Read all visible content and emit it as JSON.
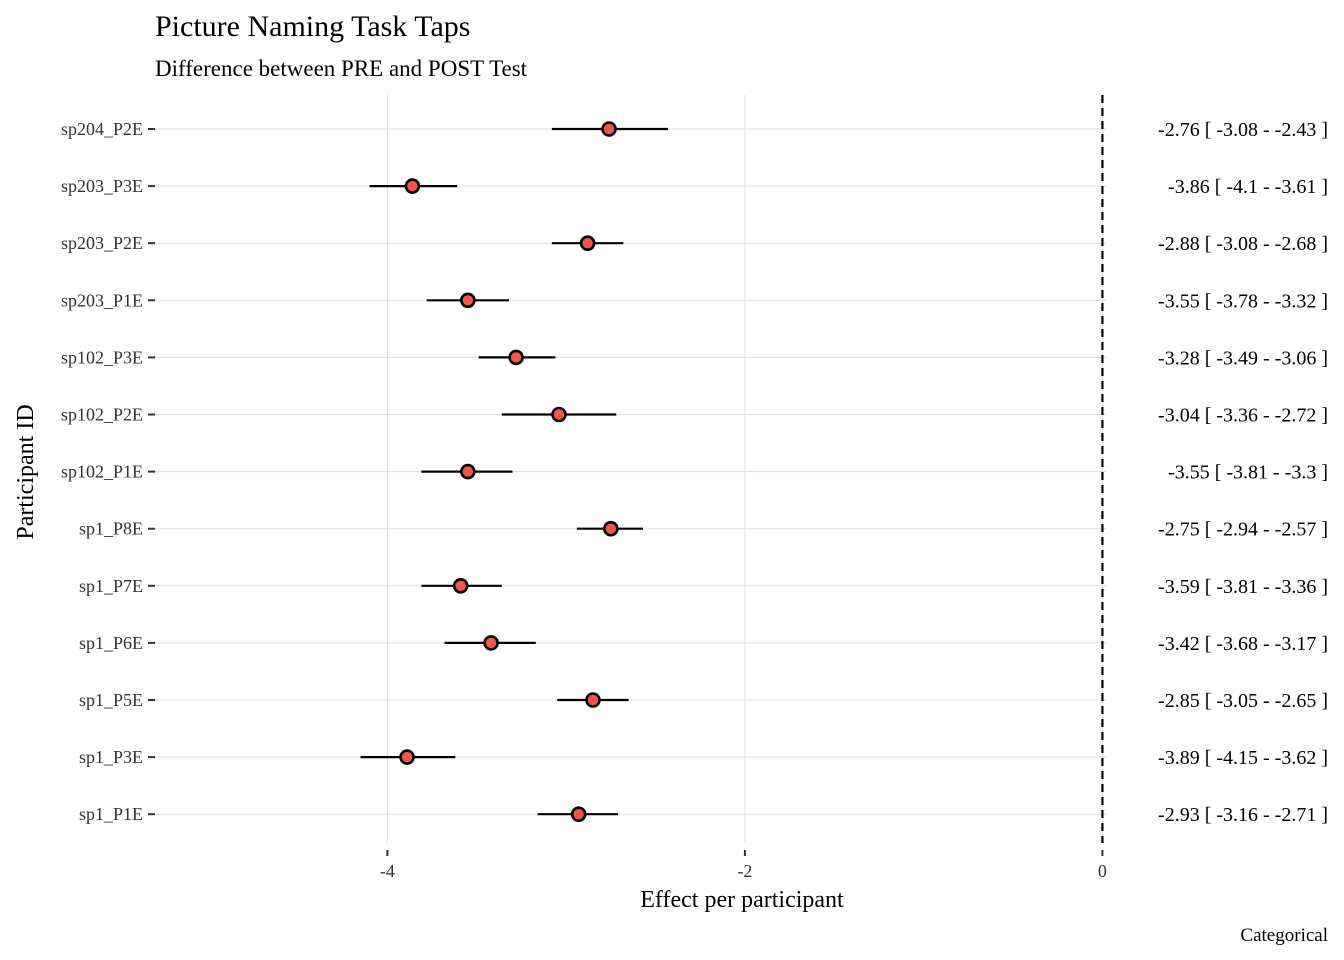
{
  "chart_data": {
    "type": "forest",
    "title": "Picture Naming Task Taps",
    "subtitle": "Difference between PRE and POST Test",
    "xlabel": "Effect per participant",
    "ylabel": "Participant ID",
    "caption": "Categorical",
    "xlim": [
      -5.3,
      0.02
    ],
    "xticks": [
      -4,
      -2,
      0
    ],
    "xtick_labels": [
      "-4",
      "-2",
      "0"
    ],
    "reference_line": 0,
    "grid": true,
    "point_color": "#F8544A",
    "rows": [
      {
        "id": "sp204_P2E",
        "estimate": -2.76,
        "low": -3.08,
        "high": -2.43,
        "label": "-2.76 [ -3.08 - -2.43 ]"
      },
      {
        "id": "sp203_P3E",
        "estimate": -3.86,
        "low": -4.1,
        "high": -3.61,
        "label": "-3.86 [ -4.1 - -3.61 ]"
      },
      {
        "id": "sp203_P2E",
        "estimate": -2.88,
        "low": -3.08,
        "high": -2.68,
        "label": "-2.88 [ -3.08 - -2.68 ]"
      },
      {
        "id": "sp203_P1E",
        "estimate": -3.55,
        "low": -3.78,
        "high": -3.32,
        "label": "-3.55 [ -3.78 - -3.32 ]"
      },
      {
        "id": "sp102_P3E",
        "estimate": -3.28,
        "low": -3.49,
        "high": -3.06,
        "label": "-3.28 [ -3.49 - -3.06 ]"
      },
      {
        "id": "sp102_P2E",
        "estimate": -3.04,
        "low": -3.36,
        "high": -2.72,
        "label": "-3.04 [ -3.36 - -2.72 ]"
      },
      {
        "id": "sp102_P1E",
        "estimate": -3.55,
        "low": -3.81,
        "high": -3.3,
        "label": "-3.55 [ -3.81 - -3.3 ]"
      },
      {
        "id": "sp1_P8E",
        "estimate": -2.75,
        "low": -2.94,
        "high": -2.57,
        "label": "-2.75 [ -2.94 - -2.57 ]"
      },
      {
        "id": "sp1_P7E",
        "estimate": -3.59,
        "low": -3.81,
        "high": -3.36,
        "label": "-3.59 [ -3.81 - -3.36 ]"
      },
      {
        "id": "sp1_P6E",
        "estimate": -3.42,
        "low": -3.68,
        "high": -3.17,
        "label": "-3.42 [ -3.68 - -3.17 ]"
      },
      {
        "id": "sp1_P5E",
        "estimate": -2.85,
        "low": -3.05,
        "high": -2.65,
        "label": "-2.85 [ -3.05 - -2.65 ]"
      },
      {
        "id": "sp1_P3E",
        "estimate": -3.89,
        "low": -4.15,
        "high": -3.62,
        "label": "-3.89 [ -4.15 - -3.62 ]"
      },
      {
        "id": "sp1_P1E",
        "estimate": -2.93,
        "low": -3.16,
        "high": -2.71,
        "label": "-2.93 [ -3.16 - -2.71 ]"
      }
    ]
  }
}
